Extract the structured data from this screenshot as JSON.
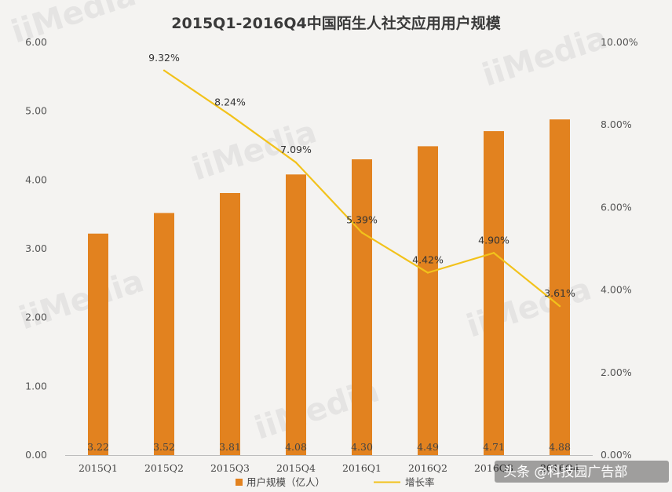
{
  "chart_data": {
    "type": "bar",
    "title": "2015Q1-2016Q4中国陌生人社交应用用户规模",
    "categories": [
      "2015Q1",
      "2015Q2",
      "2015Q3",
      "2015Q4",
      "2016Q1",
      "2016Q2",
      "2016Q3",
      "2016Q4"
    ],
    "series": [
      {
        "name": "用户规模（亿人）",
        "type": "bar",
        "axis": "left",
        "values": [
          3.22,
          3.52,
          3.81,
          4.08,
          4.3,
          4.49,
          4.71,
          4.88
        ],
        "labels": [
          "3.22",
          "3.52",
          "3.81",
          "4.08",
          "4.30",
          "4.49",
          "4.71",
          "4.88"
        ],
        "color": "#e2821f"
      },
      {
        "name": "增长率",
        "type": "line",
        "axis": "right",
        "values": [
          null,
          9.32,
          8.24,
          7.09,
          5.39,
          4.42,
          4.9,
          3.61
        ],
        "labels": [
          "",
          "9.32%",
          "8.24%",
          "7.09%",
          "5.39%",
          "4.42%",
          "4.90%",
          "3.61%"
        ],
        "color": "#f2c21b"
      }
    ],
    "y_left": {
      "min": 0,
      "max": 6,
      "ticks": [
        "0.00",
        "1.00",
        "2.00",
        "3.00",
        "4.00",
        "5.00",
        "6.00"
      ]
    },
    "y_right": {
      "min": 0,
      "max": 10,
      "ticks": [
        "0.00%",
        "2.00%",
        "4.00%",
        "6.00%",
        "8.00%",
        "10.00%"
      ]
    },
    "grid": false,
    "legend_position": "bottom"
  },
  "watermark": {
    "text": "iiMedia"
  },
  "credit": {
    "text": "头条 @科技园广告部"
  }
}
